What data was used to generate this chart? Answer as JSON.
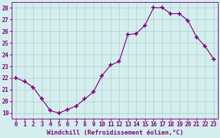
{
  "x": [
    0,
    1,
    2,
    3,
    4,
    5,
    6,
    7,
    8,
    9,
    10,
    11,
    12,
    13,
    14,
    15,
    16,
    17,
    18,
    19,
    20,
    21,
    22,
    23
  ],
  "y": [
    22.0,
    21.7,
    21.2,
    20.2,
    19.2,
    19.0,
    19.3,
    19.6,
    20.2,
    20.8,
    22.2,
    23.1,
    23.4,
    25.7,
    25.8,
    26.5,
    28.0,
    28.0,
    27.5,
    27.5,
    26.9,
    25.5,
    24.7,
    23.6
  ],
  "line_color": "#800080",
  "marker": "+",
  "marker_size": 4,
  "marker_edge_width": 1.2,
  "bg_color": "#d4eeee",
  "grid_color": "#aacaca",
  "ylabel_ticks": [
    19,
    20,
    21,
    22,
    23,
    24,
    25,
    26,
    27,
    28
  ],
  "xlim": [
    -0.5,
    23.5
  ],
  "ylim": [
    18.5,
    28.5
  ],
  "xticks": [
    0,
    1,
    2,
    3,
    4,
    5,
    6,
    7,
    8,
    9,
    10,
    11,
    12,
    13,
    14,
    15,
    16,
    17,
    18,
    19,
    20,
    21,
    22,
    23
  ],
  "xlabel": "Windchill (Refroidissement éolien,°C)",
  "tick_label_color": "#800080",
  "axis_label_color": "#800080",
  "font_size_xlabel": 6.5,
  "font_size_ticks": 6.0,
  "line_width": 0.9
}
